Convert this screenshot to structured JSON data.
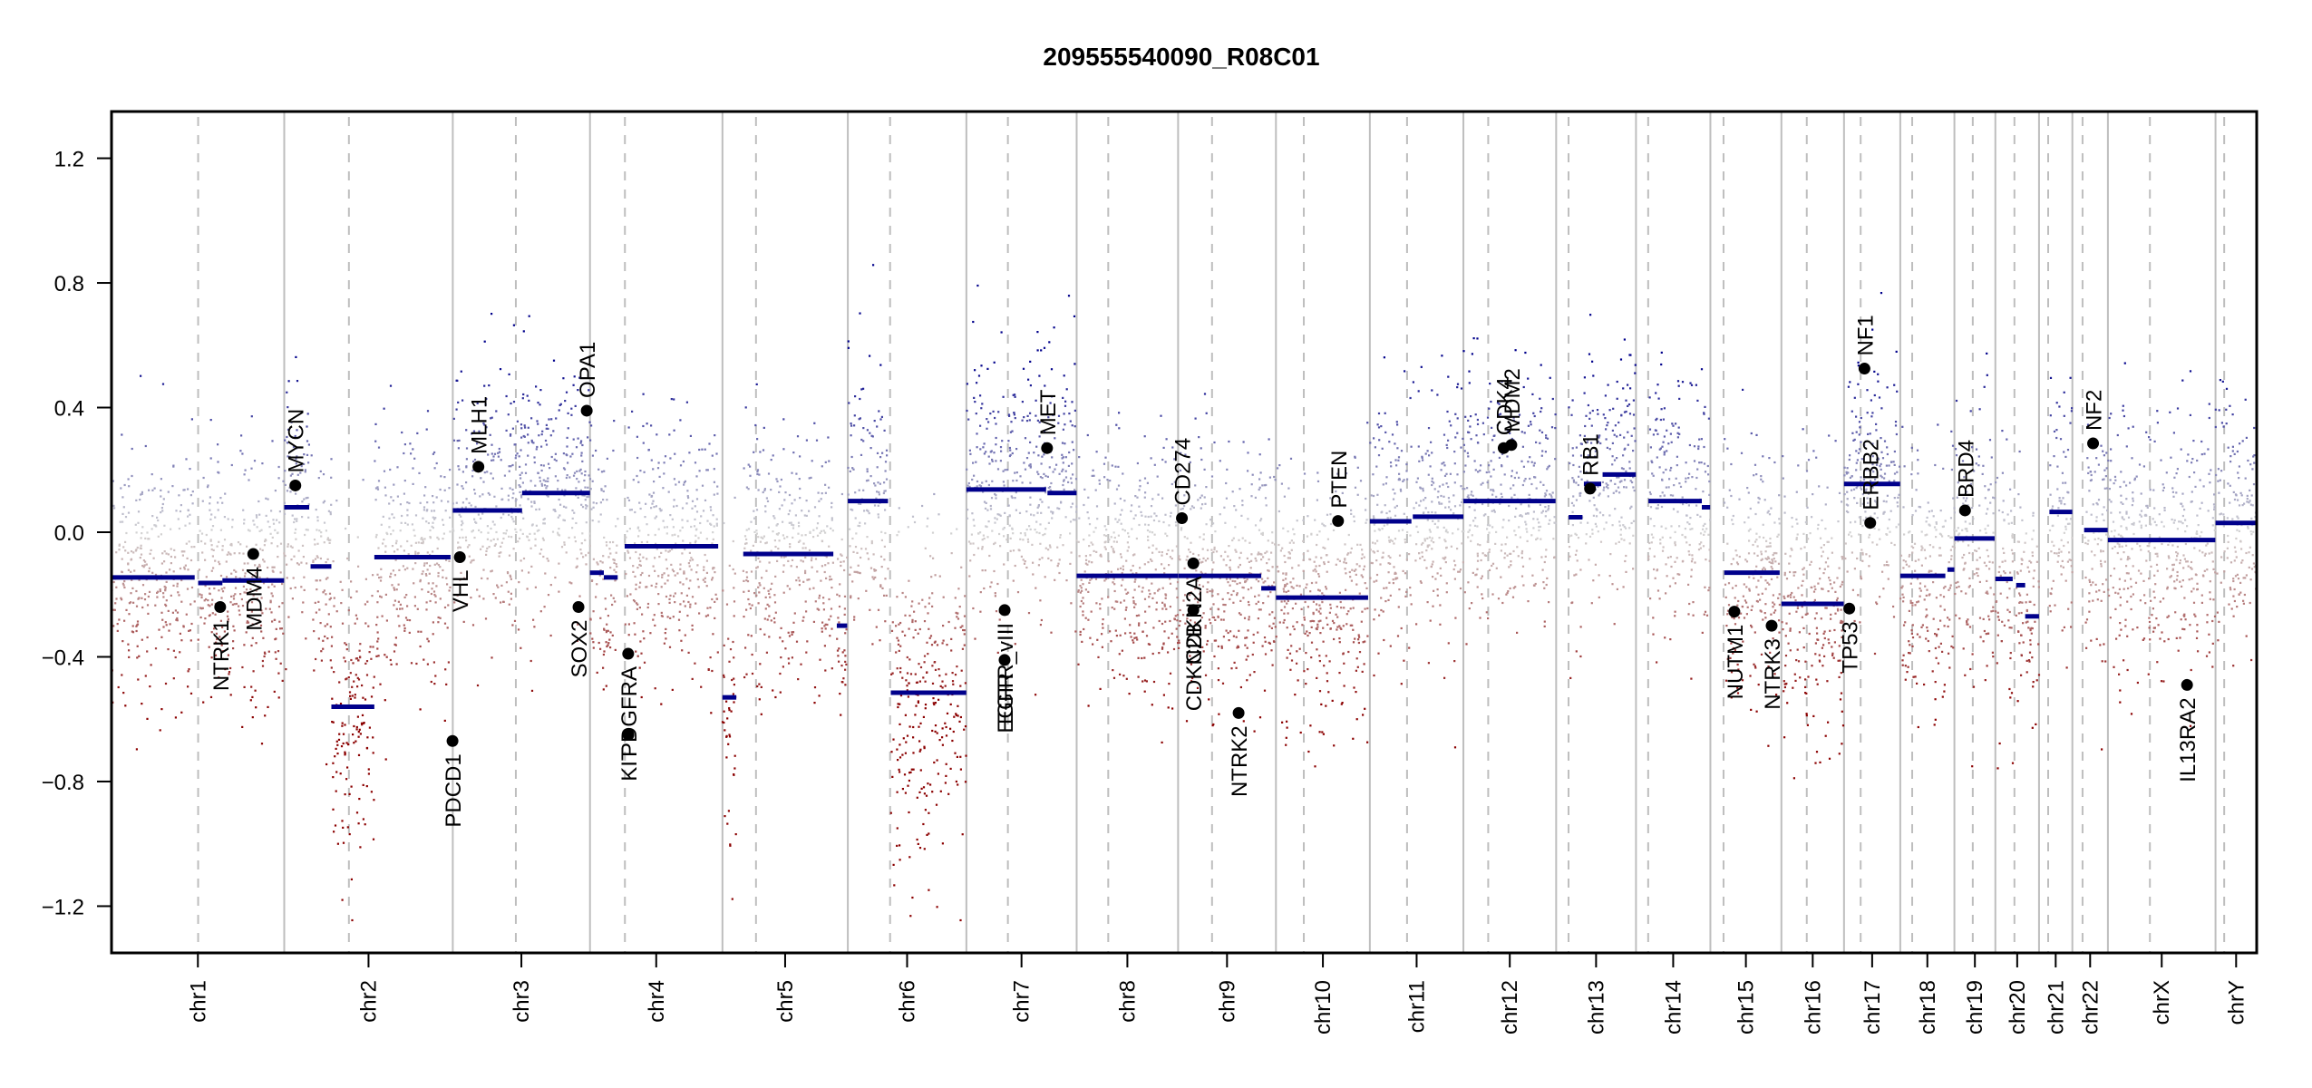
{
  "chart_data": {
    "type": "scatter",
    "title": "209555540090_R08C01",
    "xlabel": "",
    "ylabel": "",
    "ylim": [
      -1.35,
      1.35
    ],
    "yticks": [
      1.2,
      0.8,
      0.4,
      0.0,
      -0.4,
      -0.8,
      -1.2
    ],
    "ytick_labels": [
      "1.2",
      "0.8",
      "0.4",
      "0.0",
      "−0.4",
      "−0.8",
      "−1.2"
    ],
    "grid": false,
    "legend": "none",
    "colors": {
      "segment": "#00008b",
      "gain": "#00008b",
      "loss": "#8b0000",
      "neutral": "#d3d3d3",
      "gene_marker": "#000000",
      "chrom_boundary": "#bebebe",
      "centromere": "#bebebe",
      "axis": "#000000"
    },
    "genome_units": "Mb",
    "chromosomes": [
      {
        "name": "chr1",
        "length": 249.25,
        "centromere": 125.0
      },
      {
        "name": "chr2",
        "length": 243.2,
        "centromere": 93.3
      },
      {
        "name": "chr3",
        "length": 198.0,
        "centromere": 91.0
      },
      {
        "name": "chr4",
        "length": 191.15,
        "centromere": 50.4
      },
      {
        "name": "chr5",
        "length": 180.9,
        "centromere": 48.4
      },
      {
        "name": "chr6",
        "length": 171.1,
        "centromere": 61.0
      },
      {
        "name": "chr7",
        "length": 159.1,
        "centromere": 59.9
      },
      {
        "name": "chr8",
        "length": 146.4,
        "centromere": 45.6
      },
      {
        "name": "chr9",
        "length": 141.2,
        "centromere": 49.0
      },
      {
        "name": "chr10",
        "length": 135.5,
        "centromere": 40.2
      },
      {
        "name": "chr11",
        "length": 135.0,
        "centromere": 53.7
      },
      {
        "name": "chr12",
        "length": 133.85,
        "centromere": 35.8
      },
      {
        "name": "chr13",
        "length": 115.2,
        "centromere": 17.9
      },
      {
        "name": "chr14",
        "length": 107.35,
        "centromere": 17.6
      },
      {
        "name": "chr15",
        "length": 102.5,
        "centromere": 19.0
      },
      {
        "name": "chr16",
        "length": 90.35,
        "centromere": 36.6
      },
      {
        "name": "chr17",
        "length": 81.2,
        "centromere": 24.0
      },
      {
        "name": "chr18",
        "length": 78.1,
        "centromere": 17.2
      },
      {
        "name": "chr19",
        "length": 59.1,
        "centromere": 26.5
      },
      {
        "name": "chr20",
        "length": 63.0,
        "centromere": 27.5
      },
      {
        "name": "chr21",
        "length": 48.1,
        "centromere": 13.2
      },
      {
        "name": "chr22",
        "length": 51.3,
        "centromere": 14.7
      },
      {
        "name": "chrX",
        "length": 155.3,
        "centromere": 60.6
      },
      {
        "name": "chrY",
        "length": 59.4,
        "centromere": 12.5
      }
    ],
    "segments": [
      {
        "chrom": "chr1",
        "start": 0,
        "end": 120,
        "value": -0.145
      },
      {
        "chrom": "chr1",
        "start": 125,
        "end": 160,
        "value": -0.163
      },
      {
        "chrom": "chr1",
        "start": 160,
        "end": 249,
        "value": -0.155
      },
      {
        "chrom": "chr2",
        "start": 0,
        "end": 36,
        "value": 0.08
      },
      {
        "chrom": "chr2",
        "start": 38,
        "end": 68,
        "value": -0.11
      },
      {
        "chrom": "chr2",
        "start": 68,
        "end": 130,
        "value": -0.56
      },
      {
        "chrom": "chr2",
        "start": 130,
        "end": 240,
        "value": -0.08
      },
      {
        "chrom": "chr3",
        "start": 0,
        "end": 100,
        "value": 0.07
      },
      {
        "chrom": "chr3",
        "start": 100,
        "end": 198,
        "value": 0.126
      },
      {
        "chrom": "chr4",
        "start": 0,
        "end": 20,
        "value": -0.13
      },
      {
        "chrom": "chr4",
        "start": 20,
        "end": 40,
        "value": -0.145
      },
      {
        "chrom": "chr4",
        "start": 50,
        "end": 185,
        "value": -0.045
      },
      {
        "chrom": "chr5",
        "start": 0,
        "end": 20,
        "value": -0.53
      },
      {
        "chrom": "chr5",
        "start": 30,
        "end": 160,
        "value": -0.07
      },
      {
        "chrom": "chr5",
        "start": 165,
        "end": 180,
        "value": -0.3
      },
      {
        "chrom": "chr6",
        "start": 0,
        "end": 58,
        "value": 0.1
      },
      {
        "chrom": "chr6",
        "start": 62,
        "end": 171,
        "value": -0.515
      },
      {
        "chrom": "chr7",
        "start": 0,
        "end": 115,
        "value": 0.137
      },
      {
        "chrom": "chr7",
        "start": 117,
        "end": 159,
        "value": 0.126
      },
      {
        "chrom": "chr8",
        "start": 0,
        "end": 146,
        "value": -0.14
      },
      {
        "chrom": "chr9",
        "start": 0,
        "end": 120,
        "value": -0.14
      },
      {
        "chrom": "chr9",
        "start": 120,
        "end": 141,
        "value": -0.18
      },
      {
        "chrom": "chr10",
        "start": 0,
        "end": 133,
        "value": -0.21
      },
      {
        "chrom": "chr11",
        "start": 0,
        "end": 60,
        "value": 0.035
      },
      {
        "chrom": "chr11",
        "start": 62,
        "end": 135,
        "value": 0.05
      },
      {
        "chrom": "chr12",
        "start": 0,
        "end": 133,
        "value": 0.1
      },
      {
        "chrom": "chr13",
        "start": 18,
        "end": 38,
        "value": 0.048
      },
      {
        "chrom": "chr13",
        "start": 40,
        "end": 65,
        "value": 0.155
      },
      {
        "chrom": "chr13",
        "start": 67,
        "end": 115,
        "value": 0.185
      },
      {
        "chrom": "chr14",
        "start": 18,
        "end": 95,
        "value": 0.1
      },
      {
        "chrom": "chr14",
        "start": 95,
        "end": 107,
        "value": 0.08
      },
      {
        "chrom": "chr15",
        "start": 20,
        "end": 100,
        "value": -0.13
      },
      {
        "chrom": "chr16",
        "start": 0,
        "end": 90,
        "value": -0.23
      },
      {
        "chrom": "chr17",
        "start": 0,
        "end": 81,
        "value": 0.155
      },
      {
        "chrom": "chr18",
        "start": 0,
        "end": 65,
        "value": -0.14
      },
      {
        "chrom": "chr18",
        "start": 68,
        "end": 78,
        "value": -0.12
      },
      {
        "chrom": "chr19",
        "start": 0,
        "end": 58,
        "value": -0.02
      },
      {
        "chrom": "chr20",
        "start": 0,
        "end": 25,
        "value": -0.15
      },
      {
        "chrom": "chr20",
        "start": 30,
        "end": 43,
        "value": -0.17
      },
      {
        "chrom": "chr20",
        "start": 43,
        "end": 63,
        "value": -0.27
      },
      {
        "chrom": "chr21",
        "start": 15,
        "end": 48,
        "value": 0.065
      },
      {
        "chrom": "chr22",
        "start": 17,
        "end": 51,
        "value": 0.007
      },
      {
        "chrom": "chrX",
        "start": 0,
        "end": 155,
        "value": -0.025
      },
      {
        "chrom": "chrY",
        "start": 0,
        "end": 59,
        "value": 0.03
      }
    ],
    "genes": [
      {
        "name": "NTRK1",
        "chrom": "chr1",
        "pos": 156.8,
        "value": -0.24,
        "label": "below"
      },
      {
        "name": "MDM4",
        "chrom": "chr1",
        "pos": 204.5,
        "value": -0.07,
        "label": "below"
      },
      {
        "name": "MYCN",
        "chrom": "chr2",
        "pos": 16.0,
        "value": 0.15,
        "label": "above"
      },
      {
        "name": "PDCD1",
        "chrom": "chr2",
        "pos": 242.8,
        "value": -0.67,
        "label": "below"
      },
      {
        "name": "VHL",
        "chrom": "chr3",
        "pos": 10.2,
        "value": -0.08,
        "label": "below"
      },
      {
        "name": "MLH1",
        "chrom": "chr3",
        "pos": 37.0,
        "value": 0.21,
        "label": "above"
      },
      {
        "name": "SOX2",
        "chrom": "chr3",
        "pos": 181.4,
        "value": -0.24,
        "label": "below"
      },
      {
        "name": "OPA1",
        "chrom": "chr3",
        "pos": 193.3,
        "value": 0.39,
        "label": "above"
      },
      {
        "name": "PDGFRA",
        "chrom": "chr4",
        "pos": 55.1,
        "value": -0.39,
        "label": "below"
      },
      {
        "name": "KIT",
        "chrom": "chr4",
        "pos": 55.5,
        "value": -0.65,
        "label": "below"
      },
      {
        "name": "EGFR",
        "chrom": "chr7",
        "pos": 55.1,
        "value": -0.41,
        "label": "below"
      },
      {
        "name": "EGFR_vIII",
        "chrom": "chr7",
        "pos": 55.2,
        "value": -0.25,
        "label": "below"
      },
      {
        "name": "MET",
        "chrom": "chr7",
        "pos": 116.4,
        "value": 0.27,
        "label": "above"
      },
      {
        "name": "CD274",
        "chrom": "chr9",
        "pos": 5.5,
        "value": 0.045,
        "label": "above"
      },
      {
        "name": "CDKN2A",
        "chrom": "chr9",
        "pos": 21.97,
        "value": -0.1,
        "label": "below"
      },
      {
        "name": "CDKN2B",
        "chrom": "chr9",
        "pos": 22.0,
        "value": -0.25,
        "label": "below"
      },
      {
        "name": "NTRK2",
        "chrom": "chr9",
        "pos": 87.3,
        "value": -0.58,
        "label": "below"
      },
      {
        "name": "PTEN",
        "chrom": "chr10",
        "pos": 89.6,
        "value": 0.036,
        "label": "above"
      },
      {
        "name": "CDK4",
        "chrom": "chr12",
        "pos": 58.1,
        "value": 0.27,
        "label": "above"
      },
      {
        "name": "MDM2",
        "chrom": "chr12",
        "pos": 69.2,
        "value": 0.28,
        "label": "above"
      },
      {
        "name": "RB1",
        "chrom": "chr13",
        "pos": 48.9,
        "value": 0.14,
        "label": "above"
      },
      {
        "name": "NUTM1",
        "chrom": "chr15",
        "pos": 34.6,
        "value": -0.255,
        "label": "below"
      },
      {
        "name": "NTRK3",
        "chrom": "chr15",
        "pos": 88.4,
        "value": -0.3,
        "label": "below"
      },
      {
        "name": "TP53",
        "chrom": "chr17",
        "pos": 7.6,
        "value": -0.245,
        "label": "below"
      },
      {
        "name": "NF1",
        "chrom": "chr17",
        "pos": 29.5,
        "value": 0.525,
        "label": "above"
      },
      {
        "name": "ERBB2",
        "chrom": "chr17",
        "pos": 37.8,
        "value": 0.03,
        "label": "above"
      },
      {
        "name": "BRD4",
        "chrom": "chr19",
        "pos": 15.3,
        "value": 0.07,
        "label": "above"
      },
      {
        "name": "NF2",
        "chrom": "chr22",
        "pos": 29.9,
        "value": 0.285,
        "label": "above"
      },
      {
        "name": "IL13RA2",
        "chrom": "chrX",
        "pos": 114.2,
        "value": -0.49,
        "label": "below"
      }
    ]
  }
}
